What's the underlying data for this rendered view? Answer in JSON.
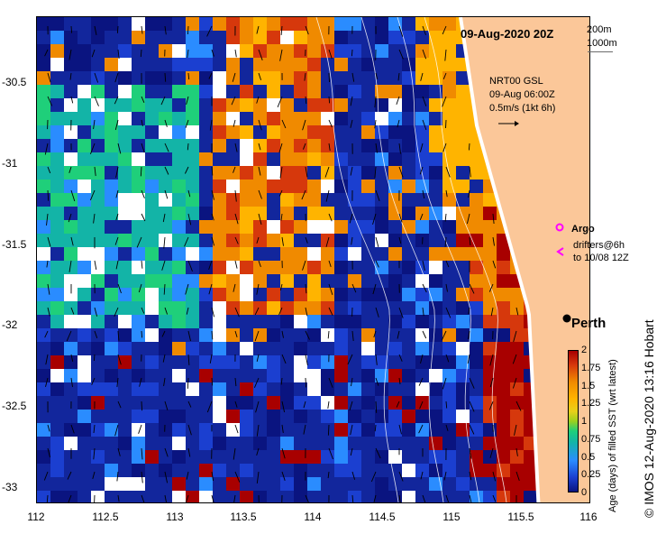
{
  "map": {
    "title": "09-Aug-2020 20Z",
    "depth_contours": [
      "200m",
      "1000m"
    ],
    "current_info": [
      "NRT00 GSL",
      "09-Aug 06:00Z",
      "0.5m/s (1kt 6h)"
    ],
    "argo_label": "Argo",
    "drifter_label": [
      "drifters@6h",
      "to 10/08 12Z"
    ],
    "city": "Perth",
    "x_ticks": [
      "112",
      "112.5",
      "113",
      "113.5",
      "114",
      "114.5",
      "115",
      "115.5",
      "116"
    ],
    "y_ticks": [
      "-30.5",
      "-31",
      "-31.5",
      "-32",
      "-32.5",
      "-33"
    ],
    "colorbar": {
      "title": "Age (days) of filled SST (wrt latest)",
      "ticks": [
        "0",
        "0.25",
        "0.5",
        "0.75",
        "1",
        "1.25",
        "1.5",
        "1.75",
        "2"
      ],
      "range": [
        0,
        2
      ]
    },
    "credit": "© IMOS 12-Aug-2020 13:16 Hobart",
    "colors": {
      "land": "#fbc799",
      "coast_fringe": "#ffffff",
      "age_0": "#0a1480",
      "age_2": "#a80000",
      "argo_marker": "#ff00ff",
      "current_arrow": "#000000",
      "contour": "#ffffff"
    }
  }
}
